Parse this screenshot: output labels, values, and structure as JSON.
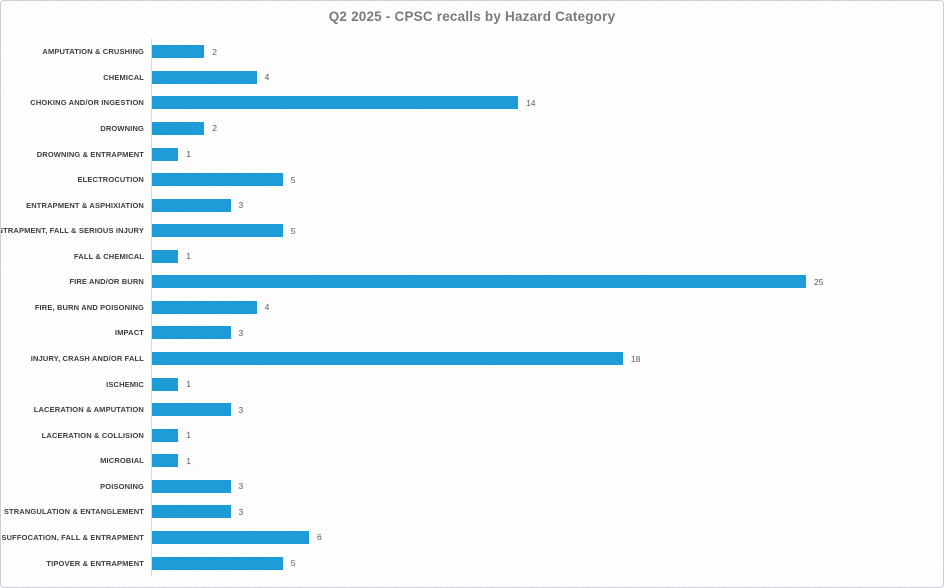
{
  "chart_data": {
    "type": "bar",
    "orientation": "horizontal",
    "title": "Q2 2025 - CPSC recalls by Hazard Category",
    "categories": [
      "AMPUTATION & CRUSHING",
      "CHEMICAL",
      "CHOKING AND/OR INGESTION",
      "DROWNING",
      "DROWNING & ENTRAPMENT",
      "ELECTROCUTION",
      "ENTRAPMENT & ASPHIXIATION",
      "ENTRAPMENT, FALL & SERIOUS INJURY",
      "FALL & CHEMICAL",
      "FIRE AND/OR BURN",
      "FIRE, BURN AND POISONING",
      "IMPACT",
      "INJURY, CRASH AND/OR FALL",
      "ISCHEMIC",
      "LACERATION & AMPUTATION",
      "LACERATION & COLLISION",
      "MICROBIAL",
      "POISONING",
      "STRANGULATION & ENTANGLEMENT",
      "SUFFOCATION, FALL & ENTRAPMENT",
      "TIPOVER & ENTRAPMENT"
    ],
    "values": [
      2,
      4,
      14,
      2,
      1,
      5,
      3,
      5,
      1,
      25,
      4,
      3,
      18,
      1,
      3,
      1,
      1,
      3,
      3,
      6,
      5
    ],
    "data_labels": true,
    "xlabel": "",
    "ylabel": "",
    "value_axis_max": 25,
    "gridlines": false,
    "legend": "none",
    "bar_color": "#1e9cd8",
    "title_color": "#7b7b7b",
    "category_label_color": "#3d3d3d",
    "value_label_color": "#595959",
    "axis_line_color": "#d9d9d9",
    "background_pattern": "light diagonal hatch"
  }
}
